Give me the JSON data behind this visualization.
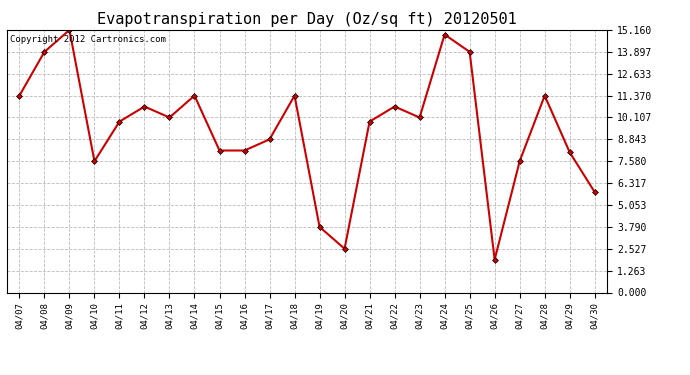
{
  "title": "Evapotranspiration per Day (Oz/sq ft) 20120501",
  "copyright": "Copyright 2012 Cartronics.com",
  "dates": [
    "04/07",
    "04/08",
    "04/09",
    "04/10",
    "04/11",
    "04/12",
    "04/13",
    "04/14",
    "04/15",
    "04/16",
    "04/17",
    "04/18",
    "04/19",
    "04/20",
    "04/21",
    "04/22",
    "04/23",
    "04/24",
    "04/25",
    "04/26",
    "04/27",
    "04/28",
    "04/29",
    "04/30"
  ],
  "values": [
    11.37,
    13.897,
    15.16,
    7.58,
    9.87,
    10.74,
    10.107,
    11.37,
    8.2,
    8.2,
    8.843,
    11.37,
    3.79,
    2.527,
    9.87,
    10.74,
    10.107,
    14.9,
    13.897,
    1.9,
    7.58,
    11.37,
    8.1,
    5.8
  ],
  "yticks": [
    0.0,
    1.263,
    2.527,
    3.79,
    5.053,
    6.317,
    7.58,
    8.843,
    10.107,
    11.37,
    12.633,
    13.897,
    15.16
  ],
  "ylim": [
    0.0,
    15.16
  ],
  "line_color": "#cc0000",
  "marker": "D",
  "marker_size": 3,
  "bg_color": "#ffffff",
  "grid_color": "#bbbbbb",
  "title_fontsize": 11,
  "copyright_fontsize": 6.5
}
